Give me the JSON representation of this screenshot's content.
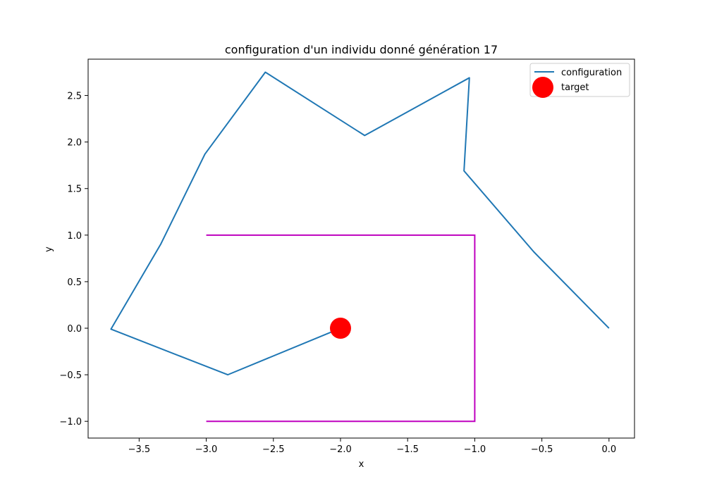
{
  "chart_data": {
    "type": "line",
    "title": "configuration d'un individu donné génération 17",
    "xlabel": "x",
    "ylabel": "y",
    "xlim": [
      -3.88,
      0.19
    ],
    "ylim": [
      -1.18,
      2.89
    ],
    "xticks": [
      -3.5,
      -3.0,
      -2.5,
      -2.0,
      -1.5,
      -1.0,
      -0.5,
      0.0
    ],
    "xtick_labels": [
      "−3.5",
      "−3.0",
      "−2.5",
      "−2.0",
      "−1.5",
      "−1.0",
      "−0.5",
      "0.0"
    ],
    "yticks": [
      -1.0,
      -0.5,
      0.0,
      0.5,
      1.0,
      1.5,
      2.0,
      2.5
    ],
    "ytick_labels": [
      "−1.0",
      "−0.5",
      "0.0",
      "0.5",
      "1.0",
      "1.5",
      "2.0",
      "2.5"
    ],
    "grid": false,
    "legend_position": "top-right",
    "series": [
      {
        "name": "configuration",
        "kind": "line",
        "color": "#1f77b4",
        "x": [
          0.0,
          -0.56,
          -1.08,
          -1.04,
          -1.82,
          -2.56,
          -3.01,
          -3.34,
          -3.71,
          -2.84,
          -2.0
        ],
        "y": [
          0.0,
          0.82,
          1.69,
          2.69,
          2.07,
          2.75,
          1.87,
          0.9,
          -0.01,
          -0.5,
          0.0
        ]
      },
      {
        "name": "target",
        "kind": "scatter",
        "color": "#ff0000",
        "x": [
          -2.0
        ],
        "y": [
          0.0
        ]
      }
    ],
    "obstacle": {
      "color": "#bf00bf",
      "x": [
        -3.0,
        -1.0,
        -1.0,
        -3.0
      ],
      "y": [
        1.0,
        1.0,
        -1.0,
        -1.0
      ]
    }
  }
}
